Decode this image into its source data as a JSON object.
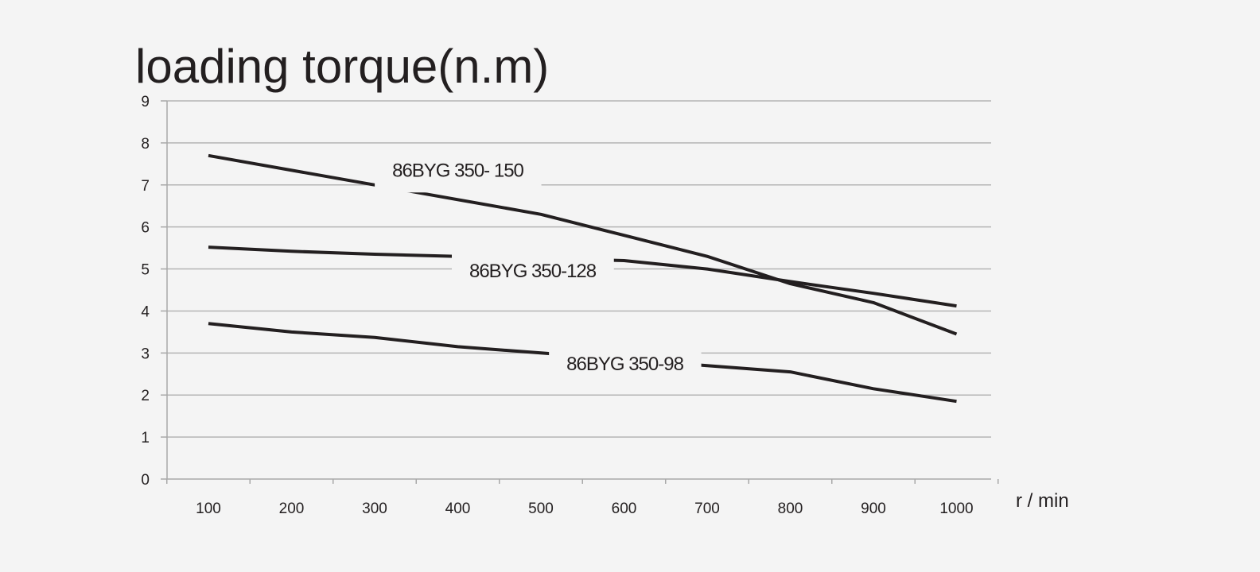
{
  "chart_data": {
    "type": "line",
    "title": "loading torque(n.m)",
    "x_unit_label": "r / min",
    "x": [
      100,
      200,
      300,
      400,
      500,
      600,
      700,
      800,
      900,
      1000
    ],
    "x_tick_labels": [
      "100",
      "200",
      "300",
      "400",
      "500",
      "600",
      "700",
      "800",
      "900",
      "1000"
    ],
    "ylim": [
      0,
      9
    ],
    "y_ticks": [
      0,
      1,
      2,
      3,
      4,
      5,
      6,
      7,
      8,
      9
    ],
    "y_tick_labels": [
      "0",
      "1",
      "2",
      "3",
      "4",
      "5",
      "6",
      "7",
      "8",
      "9"
    ],
    "grid": true,
    "series": [
      {
        "name": "86BYG 350- 150",
        "x": [
          100,
          500,
          600,
          700,
          800,
          900,
          1000
        ],
        "values": [
          7.7,
          6.3,
          5.8,
          5.3,
          4.65,
          4.2,
          3.45
        ],
        "label_at": [
          400,
          7.35
        ]
      },
      {
        "name": "86BYG 350-128",
        "x": [
          100,
          200,
          300,
          400,
          500,
          600,
          700,
          800,
          900,
          1000
        ],
        "values": [
          5.52,
          5.42,
          5.35,
          5.3,
          5.25,
          5.2,
          5.0,
          4.7,
          4.42,
          4.12
        ],
        "label_at": [
          490,
          4.95
        ]
      },
      {
        "name": "86BYG 350-98",
        "x": [
          100,
          200,
          300,
          400,
          500,
          600,
          700,
          800,
          900,
          1000
        ],
        "values": [
          3.7,
          3.5,
          3.37,
          3.15,
          3.0,
          2.85,
          2.7,
          2.55,
          2.15,
          1.85
        ],
        "label_at": [
          601,
          2.74
        ]
      }
    ]
  }
}
